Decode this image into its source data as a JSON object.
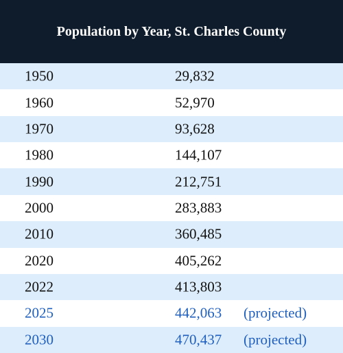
{
  "table": {
    "title": "Population by Year, St. Charles County",
    "rows": [
      [
        "1950",
        "29,832"
      ],
      [
        "1960",
        "52,970"
      ],
      [
        "1970",
        "93,628"
      ],
      [
        "1980",
        "144,107"
      ],
      [
        "1990",
        "212,751"
      ],
      [
        "2000",
        "283,883"
      ],
      [
        "2010",
        "360,485"
      ],
      [
        "2020",
        "405,262"
      ],
      [
        "2022",
        "413,803"
      ],
      [
        "2025",
        "442,063",
        "(projected)"
      ],
      [
        "2030",
        "470,437",
        "(projected)"
      ]
    ]
  }
}
